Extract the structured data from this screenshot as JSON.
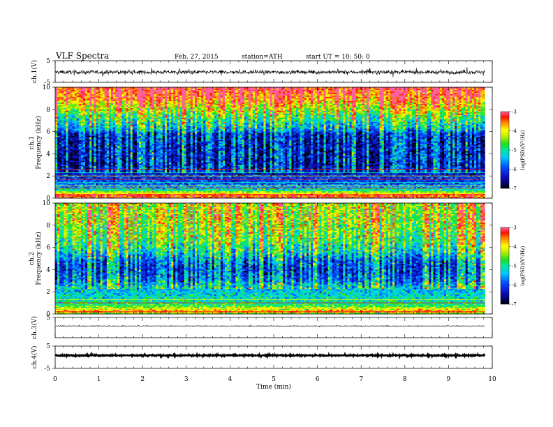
{
  "header": {
    "title": "VLF  Spectra",
    "date": "Feb. 27, 2015",
    "station": "station=ATH",
    "start": "start  UT  =    10: 50: 0"
  },
  "chart_data": [
    {
      "type": "line",
      "panel": "ch1-waveform",
      "ylabel": "ch.1(V)",
      "ylim": [
        -5,
        5
      ],
      "yticks": [
        "-5",
        "5"
      ],
      "xlim": [
        0,
        10
      ],
      "data_end_min": 9.83,
      "baseline": -0.3,
      "noise_amplitude": 0.9,
      "color": "#000000"
    },
    {
      "type": "heatmap",
      "panel": "ch1-spectrogram",
      "ylabel_line1": "ch.1",
      "ylabel_line2": "Frequency  (kHz)",
      "ylim": [
        0,
        10
      ],
      "yticks": [
        "0",
        "2",
        "4",
        "6",
        "8",
        "10"
      ],
      "xlim": [
        0,
        10
      ],
      "data_end_min": 9.83,
      "colorbar": {
        "label": "log(PSD)(V²/Hz)",
        "range": [
          -7,
          -3
        ],
        "ticks": [
          "-7",
          "-6",
          "-5",
          "-4",
          "-3"
        ]
      },
      "profile_khz": [
        0,
        0.3,
        0.6,
        1.0,
        1.5,
        2.0,
        2.4,
        3.0,
        4.0,
        5.0,
        5.8,
        6.2,
        7.0,
        8.0,
        9.0,
        10.0
      ],
      "profile_logpsd": [
        -3.4,
        -3.3,
        -4.6,
        -5.6,
        -6.0,
        -6.2,
        -6.4,
        -6.7,
        -6.6,
        -6.6,
        -6.5,
        -5.8,
        -5.3,
        -4.6,
        -3.8,
        -3.5
      ],
      "line_khz": [
        0.3,
        0.45,
        0.7,
        0.9,
        1.1,
        1.4,
        1.7,
        2.0,
        2.3,
        2.6
      ],
      "burst_count": 150
    },
    {
      "type": "heatmap",
      "panel": "ch2-spectrogram",
      "ylabel_line1": "ch.2",
      "ylabel_line2": "Frequency  (kHz)",
      "ylim": [
        0,
        10
      ],
      "yticks": [
        "0",
        "2",
        "4",
        "6",
        "8",
        "10"
      ],
      "xlim": [
        0,
        10
      ],
      "data_end_min": 9.83,
      "colorbar": {
        "label": "log(PSD)(V²/Hz)",
        "range": [
          -7,
          -3
        ],
        "ticks": [
          "-7",
          "-6",
          "-5",
          "-4",
          "-3"
        ]
      },
      "profile_khz": [
        0,
        0.2,
        0.5,
        0.9,
        1.4,
        2.0,
        2.6,
        3.0,
        3.6,
        4.2,
        4.8,
        5.5,
        6.5,
        7.5,
        8.5,
        10.0
      ],
      "profile_logpsd": [
        -4.8,
        -3.5,
        -4.3,
        -4.9,
        -5.1,
        -5.3,
        -5.7,
        -6.1,
        -6.3,
        -6.4,
        -6.2,
        -5.6,
        -5.1,
        -4.9,
        -4.7,
        -4.6
      ],
      "line_khz": [
        0.2,
        0.5,
        0.8,
        1.0,
        1.3,
        1.6
      ],
      "burst_count": 150
    },
    {
      "type": "line",
      "panel": "ch3-waveform",
      "ylabel": "ch.3(V)",
      "ylim": [
        -5,
        5
      ],
      "yticks": [
        "5"
      ],
      "xlim": [
        0,
        10
      ],
      "data_end_min": 9.83,
      "baseline": 0.8,
      "noise_amplitude": 0.15,
      "color": "#000000"
    },
    {
      "type": "line",
      "panel": "ch4-waveform",
      "ylabel": "ch.4(V)",
      "ylim": [
        -5,
        5
      ],
      "yticks": [
        "-5",
        "5"
      ],
      "xlim": [
        0,
        10
      ],
      "data_end_min": 9.83,
      "baseline": 0.8,
      "noise_amplitude": 0.3,
      "color": "#000000"
    }
  ],
  "xaxis": {
    "label": "Time  (min)",
    "ticks": [
      "0",
      "1",
      "2",
      "3",
      "4",
      "5",
      "6",
      "7",
      "8",
      "9",
      "10"
    ]
  }
}
